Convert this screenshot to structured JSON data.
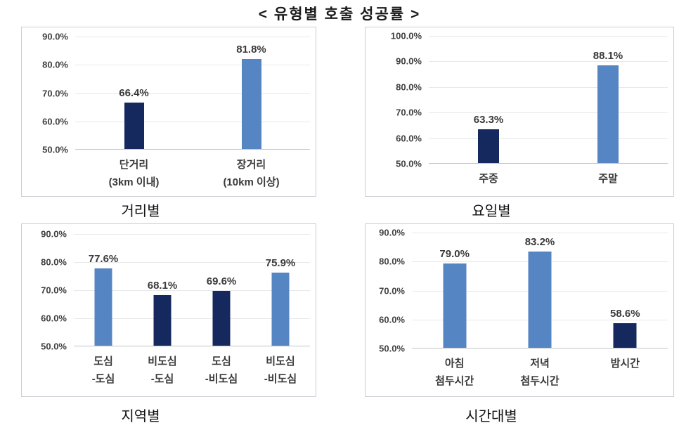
{
  "title": "< 유형별 호출 성공률 >",
  "colors": {
    "dark_navy": "#15295e",
    "light_blue": "#5685c3",
    "gridline": "#e7e8e9",
    "axis_line": "#bfc3c7",
    "panel_border": "#c9cdd2",
    "label_text": "#3a3a3a"
  },
  "chart_data": [
    {
      "type": "bar",
      "title": "거리별",
      "ylim": [
        50,
        90
      ],
      "grid": true,
      "yticks": [
        "90.0%",
        "80.0%",
        "70.0%",
        "60.0%",
        "50.0%"
      ],
      "categories": [
        "단거리\n(3km 이내)",
        "장거리\n(10km 이상)"
      ],
      "values": [
        66.4,
        81.8
      ],
      "value_labels": [
        "66.4%",
        "81.8%"
      ],
      "bar_colors": [
        "dark_navy",
        "light_blue"
      ]
    },
    {
      "type": "bar",
      "title": "요일별",
      "ylim": [
        50,
        100
      ],
      "grid": true,
      "yticks": [
        "100.0%",
        "90.0%",
        "80.0%",
        "70.0%",
        "60.0%",
        "50.0%"
      ],
      "categories": [
        "주중",
        "주말"
      ],
      "values": [
        63.3,
        88.1
      ],
      "value_labels": [
        "63.3%",
        "88.1%"
      ],
      "bar_colors": [
        "dark_navy",
        "light_blue"
      ]
    },
    {
      "type": "bar",
      "title": "지역별",
      "ylim": [
        50,
        90
      ],
      "grid": true,
      "yticks": [
        "90.0%",
        "80.0%",
        "70.0%",
        "60.0%",
        "50.0%"
      ],
      "categories": [
        "도심\n-도심",
        "비도심\n-도심",
        "도심\n-비도심",
        "비도심\n-비도심"
      ],
      "values": [
        77.6,
        68.1,
        69.6,
        75.9
      ],
      "value_labels": [
        "77.6%",
        "68.1%",
        "69.6%",
        "75.9%"
      ],
      "bar_colors": [
        "light_blue",
        "dark_navy",
        "dark_navy",
        "light_blue"
      ]
    },
    {
      "type": "bar",
      "title": "시간대별",
      "ylim": [
        50,
        90
      ],
      "grid": true,
      "yticks": [
        "90.0%",
        "80.0%",
        "70.0%",
        "60.0%",
        "50.0%"
      ],
      "categories": [
        "아침\n첨두시간",
        "저녁\n첨두시간",
        "밤시간"
      ],
      "values": [
        79.0,
        83.2,
        58.6
      ],
      "value_labels": [
        "79.0%",
        "83.2%",
        "58.6%"
      ],
      "bar_colors": [
        "light_blue",
        "light_blue",
        "dark_navy"
      ]
    }
  ]
}
